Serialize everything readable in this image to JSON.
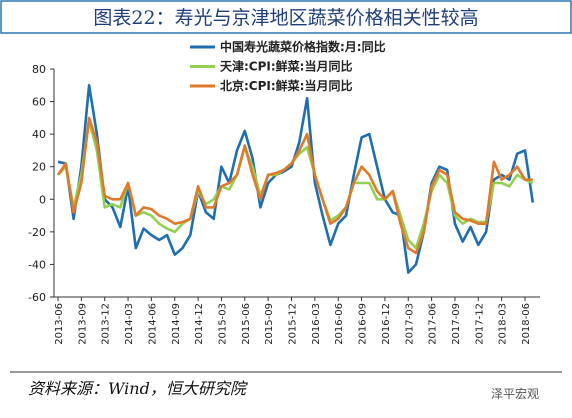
{
  "chart_data": {
    "type": "line",
    "title": "图表22：寿光与京津地区蔬菜价格相关性较高",
    "source": "资料来源：Wind，恒大研究院",
    "watermark": "泽平宏观",
    "categories": [
      "2013-06",
      null,
      null,
      "2013-09",
      null,
      null,
      "2013-12",
      null,
      null,
      "2014-03",
      null,
      null,
      "2014-06",
      null,
      null,
      "2014-09",
      null,
      null,
      "2014-12",
      null,
      null,
      "2015-03",
      null,
      null,
      "2015-06",
      null,
      null,
      "2015-09",
      null,
      null,
      "2015-12",
      null,
      null,
      "2016-03",
      null,
      null,
      "2016-06",
      null,
      null,
      "2016-09",
      null,
      null,
      "2016-12",
      null,
      null,
      "2017-03",
      null,
      null,
      "2017-06",
      null,
      null,
      "2017-09",
      null,
      null,
      "2017-12",
      null,
      null,
      "2018-03",
      null,
      null,
      "2018-06",
      null
    ],
    "series": [
      {
        "name": "中国寿光蔬菜价格指数:月:同比",
        "color": "#1f6fb0",
        "values": [
          23,
          22,
          -12,
          20,
          70,
          40,
          0,
          -5,
          -17,
          8,
          -30,
          -18,
          -22,
          -25,
          -22,
          -34,
          -30,
          -22,
          5,
          -8,
          -12,
          20,
          10,
          30,
          42,
          25,
          -5,
          10,
          15,
          17,
          20,
          35,
          62,
          10,
          -10,
          -28,
          -15,
          -10,
          15,
          38,
          40,
          20,
          0,
          -8,
          -10,
          -45,
          -40,
          -20,
          10,
          20,
          18,
          -15,
          -26,
          -17,
          -28,
          -20,
          12,
          15,
          12,
          28,
          30,
          -2
        ]
      },
      {
        "name": "天津:CPI:鲜菜:当月同比",
        "color": "#92d050",
        "values": [
          15,
          20,
          -5,
          15,
          48,
          30,
          -5,
          -3,
          -5,
          10,
          -10,
          -8,
          -10,
          -15,
          -18,
          -20,
          -15,
          -12,
          5,
          -3,
          0,
          8,
          6,
          15,
          32,
          20,
          2,
          15,
          15,
          18,
          22,
          28,
          32,
          15,
          0,
          -13,
          -10,
          -5,
          10,
          10,
          10,
          0,
          0,
          5,
          -10,
          -25,
          -30,
          -15,
          5,
          15,
          10,
          -10,
          -15,
          -12,
          -14,
          -14,
          10,
          10,
          8,
          15,
          12,
          10
        ]
      },
      {
        "name": "北京:CPI:鲜菜:当月同比",
        "color": "#e07a2a",
        "values": [
          15,
          22,
          -8,
          10,
          50,
          35,
          2,
          0,
          0,
          10,
          -10,
          -5,
          -6,
          -10,
          -12,
          -15,
          -14,
          -12,
          8,
          -5,
          -5,
          8,
          10,
          15,
          33,
          15,
          0,
          15,
          16,
          18,
          22,
          30,
          40,
          15,
          0,
          -15,
          -12,
          -5,
          10,
          20,
          15,
          5,
          0,
          5,
          -15,
          -30,
          -33,
          -20,
          8,
          18,
          15,
          -8,
          -12,
          -13,
          -15,
          -15,
          23,
          12,
          15,
          20,
          12,
          12
        ]
      }
    ],
    "ylim": [
      -60,
      80
    ],
    "yticks": [
      -60,
      -40,
      -20,
      0,
      20,
      40,
      60,
      80
    ],
    "legend": "upper center"
  }
}
